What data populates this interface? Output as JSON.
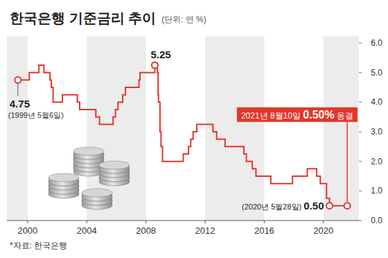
{
  "chart_data": {
    "type": "line",
    "title": "한국은행 기준금리 추이",
    "subtitle": "(단위: 연 %)",
    "source": "*자료: 한국은행",
    "line_style": "step",
    "color": "#e4362b",
    "grid": false,
    "x": [
      1999.34,
      2000.11,
      2000.76,
      2001.1,
      2001.51,
      2001.6,
      2001.72,
      2002.35,
      2003.36,
      2003.52,
      2004.61,
      2004.86,
      2005.78,
      2005.94,
      2006.11,
      2006.43,
      2006.61,
      2007.53,
      2007.6,
      2008.6,
      2008.77,
      2008.82,
      2008.85,
      2008.95,
      2009.02,
      2009.12,
      2010.52,
      2010.88,
      2011.03,
      2011.19,
      2011.44,
      2012.53,
      2012.78,
      2013.35,
      2014.62,
      2014.79,
      2015.19,
      2015.44,
      2016.44,
      2017.91,
      2018.91,
      2019.54,
      2019.79,
      2020.21,
      2020.41,
      2021.61
    ],
    "values": [
      4.75,
      5.0,
      5.25,
      5.0,
      4.75,
      4.5,
      4.0,
      4.25,
      4.0,
      3.75,
      3.5,
      3.25,
      3.5,
      3.75,
      4.0,
      4.25,
      4.5,
      4.75,
      5.0,
      5.25,
      5.0,
      4.25,
      4.0,
      3.0,
      2.5,
      2.0,
      2.25,
      2.5,
      2.75,
      3.0,
      3.25,
      3.0,
      2.75,
      2.5,
      2.25,
      2.0,
      1.75,
      1.5,
      1.25,
      1.5,
      1.75,
      1.5,
      1.25,
      0.75,
      0.5,
      0.5
    ],
    "xlim": [
      1998.6,
      2022.4
    ],
    "xticks": [
      2000,
      2004,
      2008,
      2012,
      2016,
      2020
    ],
    "ylim": [
      0,
      6
    ],
    "yticks": [
      {
        "value": 0,
        "label": "0.0"
      },
      {
        "value": 1,
        "label": "1.0"
      },
      {
        "value": 2,
        "label": "2.0"
      },
      {
        "value": 3,
        "label": "3.0"
      },
      {
        "value": 4,
        "label": "4.0"
      },
      {
        "value": 5,
        "label": "5.0"
      },
      {
        "value": 6,
        "label": "6.0"
      }
    ],
    "annotations": [
      {
        "text": "4.75",
        "note": "(1999년 5월6일)",
        "x": 1999.34,
        "y": 4.75
      },
      {
        "text": "5.25",
        "x": 2008.6,
        "y": 5.25
      },
      {
        "text": "0.50",
        "note": "(2020년 5월28일)",
        "x": 2020.41,
        "y": 0.5
      },
      {
        "text": "0.50%",
        "note": "2021년 8월10일",
        "suffix": "동결",
        "x": 2021.61,
        "y": 0.5
      }
    ]
  }
}
